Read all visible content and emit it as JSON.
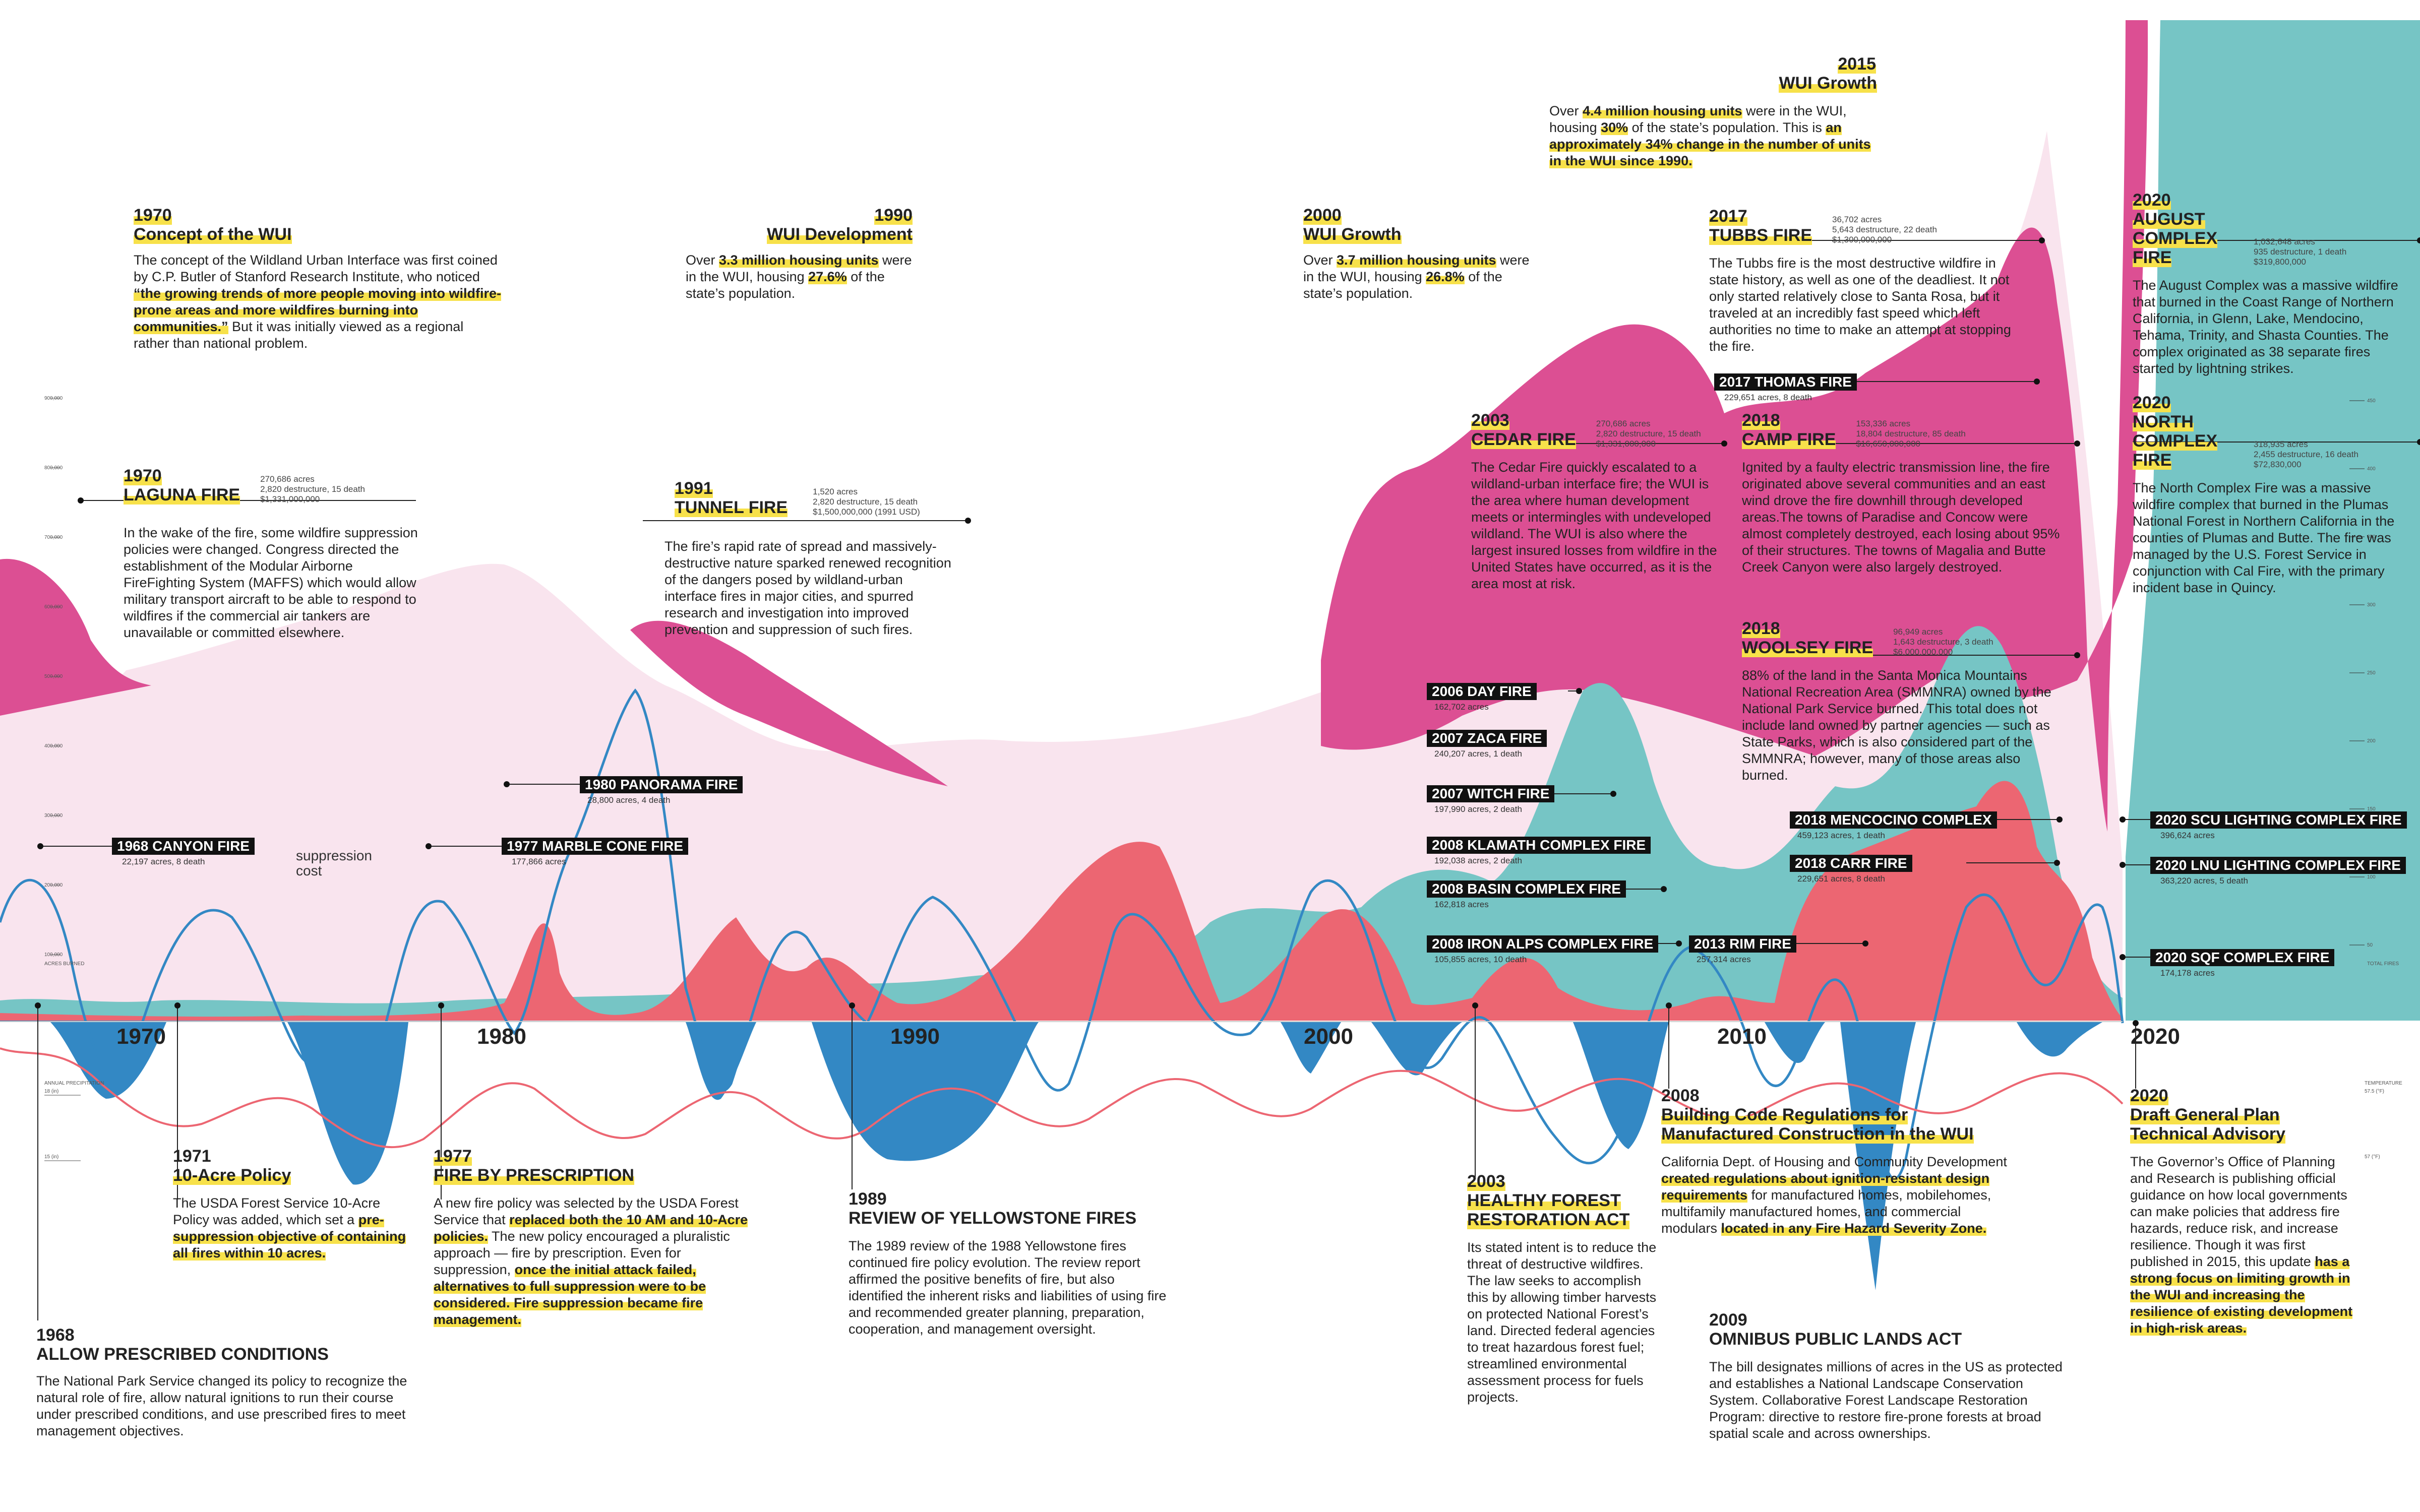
{
  "colors": {
    "pink": "#dc4f93",
    "light_pink": "#f9e4ee",
    "coral": "#ec6672",
    "teal": "#76c5c5",
    "blue": "#3388c4",
    "highlight": "#f7e14a"
  },
  "chart_data": {
    "type": "area",
    "x_axis_ticks": [
      "1970",
      "1980",
      "1990",
      "2000",
      "2010",
      "2020"
    ],
    "series_visual_order": [
      "light_pink_area",
      "pink_area",
      "teal_area",
      "coral_area",
      "blue_line"
    ],
    "left_scale_ticks": [
      "900,000",
      "800,000",
      "700,000",
      "600,000",
      "500,000",
      "400,000",
      "300,000",
      "200,000",
      "100,000"
    ],
    "left_scale_label": "ACRES BURNED",
    "precip_label": "ANNUAL PRECIPITATION",
    "precip_ticks": [
      "18 (in)",
      "15 (in)"
    ],
    "right_scale_ticks": [
      "450",
      "400",
      "350",
      "300",
      "250",
      "200",
      "150",
      "100",
      "50"
    ],
    "right_scale_label": "TOTAL FIRES",
    "temp_label": "TEMPERATURE",
    "temp_ticks": [
      "57.5 (°F)",
      "57 (°F)"
    ]
  },
  "suppression_label": "suppression\ncost",
  "top_events": [
    {
      "id": "wui-1970",
      "year": "1970",
      "title": "Concept of the WUI",
      "body_html": "The concept of the Wildland Urban Interface was first coined by C.P. Butler of Stanford Research Institute, who noticed <span class=\"hl\">“the growing trends of more people moving into wildfire-prone areas and more wildfires burning into communities.”</span> But it was initially viewed as a regional rather than national problem."
    },
    {
      "id": "wui-1990",
      "year": "1990",
      "title": "WUI Development",
      "body_html": "Over <span class=\"hl\">3.3 million housing units</span> were in the WUI, housing <span class=\"hl\">27.6%</span> of the state’s population."
    },
    {
      "id": "wui-2000",
      "year": "2000",
      "title": "WUI Growth",
      "body_html": "Over <span class=\"hl\">3.7 million housing units</span> were in the WUI, housing <span class=\"hl\">26.8%</span> of the state’s population."
    },
    {
      "id": "wui-2015",
      "year": "2015",
      "title": "WUI Growth",
      "body_html": "Over <span class=\"hl\">4.4 million housing units</span> were in the WUI, housing <span class=\"hl\">30%</span> of the state’s population. This is <span class=\"hl\">an approximately 34% change in the number of units in the WUI since 1990.</span>"
    }
  ],
  "fires": [
    {
      "id": "laguna",
      "year": "1970",
      "name": "LAGUNA FIRE",
      "stats": [
        "270,686 acres",
        "2,820 destructure, 15 death",
        "$1,331,000,000"
      ],
      "body_html": "In the wake of the fire, some wildfire suppression policies were changed. Congress directed the establishment of the Modular Airborne FireFighting System (MAFFS) which would allow military transport aircraft to be able to respond to wildfires if the commercial air tankers are unavailable or committed elsewhere."
    },
    {
      "id": "tunnel",
      "year": "1991",
      "name": "TUNNEL FIRE",
      "stats": [
        "1,520 acres",
        "2,820 destructure, 15 death",
        "$1,500,000,000 (1991 USD)"
      ],
      "body_html": "The fire’s rapid rate of spread and massively-destructive nature sparked renewed recognition of the dangers posed by wildland-urban interface fires in major cities, and spurred research and investigation into improved prevention and suppression of such fires."
    },
    {
      "id": "cedar",
      "year": "2003",
      "name": "CEDAR FIRE",
      "stats": [
        "270,686 acres",
        "2,820 destructure, 15 death",
        "$1,331,000,000"
      ],
      "body_html": "The Cedar Fire quickly escalated to a wildland-urban interface fire; the WUI is the area where human development meets or intermingles with undeveloped wildland. The WUI is also where the largest insured losses from wildfire in the United States have occurred, as it is the area most at risk."
    },
    {
      "id": "tubbs",
      "year": "2017",
      "name": "TUBBS FIRE",
      "stats": [
        "36,702 acres",
        "5,643 destructure, 22 death",
        "$1,300,000,000"
      ],
      "body_html": "The Tubbs fire is the most destructive wildfire in state history, as well as one of the deadliest. It not only started relatively close to Santa Rosa, but it traveled at an incredibly fast speed which left authorities no time to make an attempt at stopping the fire."
    },
    {
      "id": "camp",
      "year": "2018",
      "name": "CAMP FIRE",
      "stats": [
        "153,336 acres",
        "18,804 destructure, 85 death",
        "$16,650,000,000"
      ],
      "body_html": "Ignited by a faulty electric transmission line, the fire originated above several communities and an east wind drove the fire downhill through developed areas.The towns of Paradise and Concow were almost completely destroyed, each losing about 95% of their structures. The towns of Magalia and Butte Creek Canyon were also largely destroyed."
    },
    {
      "id": "woolsey",
      "year": "2018",
      "name": "WOOLSEY FIRE",
      "stats": [
        "96,949 acres",
        "1,643 destructure, 3 death",
        "$6,000,000,000"
      ],
      "body_html": "88% of the land in the Santa Monica Mountains National Recreation Area (SMMNRA) owned by the National Park Service burned. This total does not include land owned by partner agencies — such as State Parks, which is also considered part of the SMMNRA; however, many of those areas also burned."
    },
    {
      "id": "august",
      "year": "2020",
      "name": "AUGUST COMPLEX FIRE",
      "stats": [
        "1,032,648 acres",
        "935 destructure, 1 death",
        "$319,800,000"
      ],
      "body_html": "The August Complex was a massive wildfire that burned in the Coast Range of Northern California, in Glenn, Lake, Mendocino, Tehama, Trinity, and Shasta Counties. The complex originated as 38 separate fires started by lightning strikes."
    },
    {
      "id": "north",
      "year": "2020",
      "name": "NORTH COMPLEX FIRE",
      "stats": [
        "318,935 acres",
        "2,455 destructure, 16 death",
        "$72,830,000"
      ],
      "body_html": "The North Complex Fire was a massive wildfire complex that burned in the Plumas National Forest in Northern California in the counties of Plumas and Butte. The fire was managed by the U.S. Forest Service in conjunction with Cal Fire, with the primary incident base in Quincy."
    }
  ],
  "tags": [
    {
      "id": "canyon",
      "name": "1968 CANYON FIRE",
      "sub": "22,197 acres, 8 death"
    },
    {
      "id": "panorama",
      "name": "1980 PANORAMA FIRE",
      "sub": "28,800 acres, 4 death"
    },
    {
      "id": "marble",
      "name": "1977 MARBLE CONE FIRE",
      "sub": "177,866 acres"
    },
    {
      "id": "day",
      "name": "2006 DAY FIRE",
      "sub": "162,702 acres"
    },
    {
      "id": "zaca",
      "name": "2007 ZACA FIRE",
      "sub": "240,207 acres, 1 death"
    },
    {
      "id": "witch",
      "name": "2007 WITCH FIRE",
      "sub": "197,990 acres, 2 death"
    },
    {
      "id": "klamath",
      "name": "2008 KLAMATH COMPLEX FIRE",
      "sub": "192,038 acres, 2 death"
    },
    {
      "id": "basin",
      "name": "2008 BASIN COMPLEX FIRE",
      "sub": "162,818 acres"
    },
    {
      "id": "ironalps",
      "name": "2008 IRON ALPS COMPLEX FIRE",
      "sub": "105,855 acres, 10 death"
    },
    {
      "id": "rim",
      "name": "2013 RIM FIRE",
      "sub": "257,314 acres"
    },
    {
      "id": "thomas",
      "name": "2017 THOMAS FIRE",
      "sub": "229,651 acres, 8 death"
    },
    {
      "id": "mendocino",
      "name": "2018 MENCOCINO COMPLEX",
      "sub": "459,123 acres, 1 death"
    },
    {
      "id": "carr",
      "name": "2018 CARR FIRE",
      "sub": "229,651 acres, 8 death"
    },
    {
      "id": "scu",
      "name": "2020 SCU LIGHTING COMPLEX FIRE",
      "sub": "396,624 acres"
    },
    {
      "id": "lnu",
      "name": "2020 LNU LIGHTING COMPLEX FIRE",
      "sub": "363,220 acres, 5 death"
    },
    {
      "id": "sqf",
      "name": "2020 SQF COMPLEX FIRE",
      "sub": "174,178 acres"
    }
  ],
  "policies": [
    {
      "id": "p1968",
      "year": "1968",
      "title": "ALLOW PRESCRIBED CONDITIONS",
      "body_html": "The National Park Service changed its policy to recognize the natural role of fire, allow natural ignitions to run their course under prescribed conditions, and use prescribed fires to meet management objectives."
    },
    {
      "id": "p1971",
      "year": "1971",
      "title": "10-Acre Policy",
      "body_html": "The USDA Forest Service 10-Acre Policy was added, which set a <span class=\"hl\">pre-suppression objective of containing all fires within 10 acres.</span>"
    },
    {
      "id": "p1977",
      "year": "1977",
      "title": "FIRE BY PRESCRIPTION",
      "body_html": "A new fire policy was selected by the USDA Forest Service that <span class=\"hl\">replaced both the 10 AM and 10-Acre policies.</span> The new policy encouraged a pluralistic approach — fire by prescription. Even for suppression, <span class=\"hl\">once the initial attack failed, alternatives to full suppression were to be considered. Fire suppression became fire management.</span>"
    },
    {
      "id": "p1989",
      "year": "1989",
      "title": "REVIEW OF YELLOWSTONE FIRES",
      "body_html": "The 1989 review of the 1988 Yellowstone fires continued fire policy evolution. The review report affirmed the positive benefits of fire, but also identified the inherent risks and liabilities of using fire and recommended greater planning, preparation, cooperation, and management oversight."
    },
    {
      "id": "p2003",
      "year": "2003",
      "title": "HEALTHY FOREST RESTORATION ACT",
      "body_html": "Its stated intent is to reduce the threat of destructive wildfires. The law seeks to accomplish this by allowing timber harvests on protected National Forest’s land. Directed federal agencies to treat hazardous forest fuel; streamlined environmental assessment process for fuels projects."
    },
    {
      "id": "p2008",
      "year": "2008",
      "title": "Building Code Regulations for Manufactured Construction in the WUI",
      "body_html": "California Dept. of Housing and Community Development <span class=\"hl\">created regulations about ignition-resistant design requirements</span> for manufactured homes, mobilehomes, multifamily manufactured homes, and commercial modulars <span class=\"hl\">located in any Fire Hazard Severity Zone.</span>"
    },
    {
      "id": "p2009",
      "year": "2009",
      "title": "OMNIBUS PUBLIC LANDS ACT",
      "body_html": "The bill designates millions of acres in the US as protected and establishes a National Landscape Conservation System. Collaborative Forest Landscape Restoration Program: directive to restore fire-prone forests at broad spatial scale and across ownerships."
    },
    {
      "id": "p2020",
      "year": "2020",
      "title": "Draft General Plan Technical Advisory",
      "body_html": "The Governor’s Office of Planning and Research is publishing official guidance on how local governments can make policies that address fire hazards, reduce risk, and increase resilience. Though it was first published in 2015, this update <span class=\"hl\">has a strong focus on limiting growth in the WUI and increasing the resilience of existing development in high-risk areas.</span>"
    }
  ]
}
